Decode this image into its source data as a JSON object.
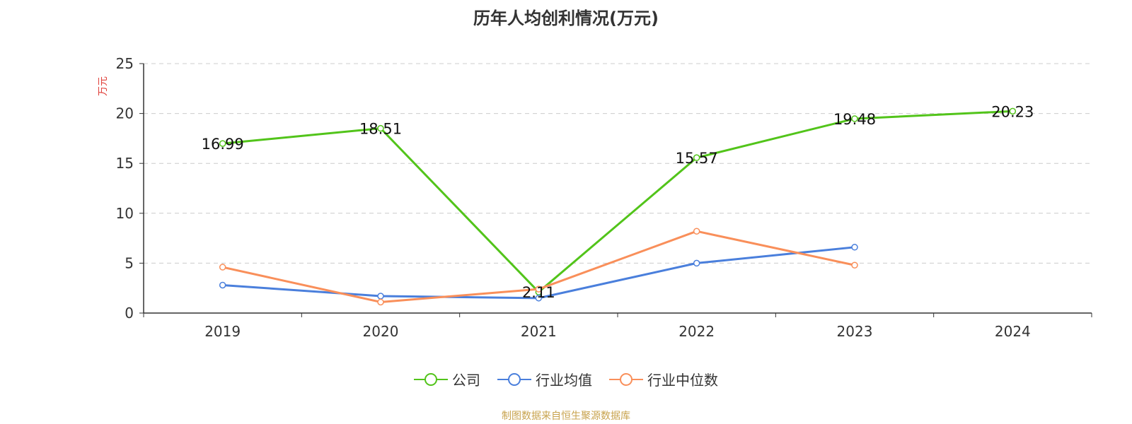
{
  "title": "历年人均创利情况(万元)",
  "source": "制图数据来自恒生聚源数据库",
  "chart_data": {
    "type": "line",
    "title": "历年人均创利情况(万元)",
    "ylabel": "万元",
    "categories": [
      "2019",
      "2020",
      "2021",
      "2022",
      "2023",
      "2024"
    ],
    "ylim": [
      0,
      25
    ],
    "yticks": [
      0,
      5,
      10,
      15,
      20,
      25
    ],
    "grid": true,
    "legend_position": "bottom",
    "series": [
      {
        "name": "公司",
        "color": "#52c41a",
        "values": [
          16.99,
          18.51,
          2.11,
          15.57,
          19.48,
          20.23
        ],
        "labels": [
          "16.99",
          "18.51",
          "2.11",
          "15.57",
          "19.48",
          "20.23"
        ]
      },
      {
        "name": "行业均值",
        "color": "#4a7fdc",
        "values": [
          2.8,
          1.7,
          1.5,
          5.0,
          6.6,
          null
        ]
      },
      {
        "name": "行业中位数",
        "color": "#f98f5a",
        "values": [
          4.6,
          1.1,
          2.4,
          8.2,
          4.8,
          null
        ]
      }
    ]
  }
}
